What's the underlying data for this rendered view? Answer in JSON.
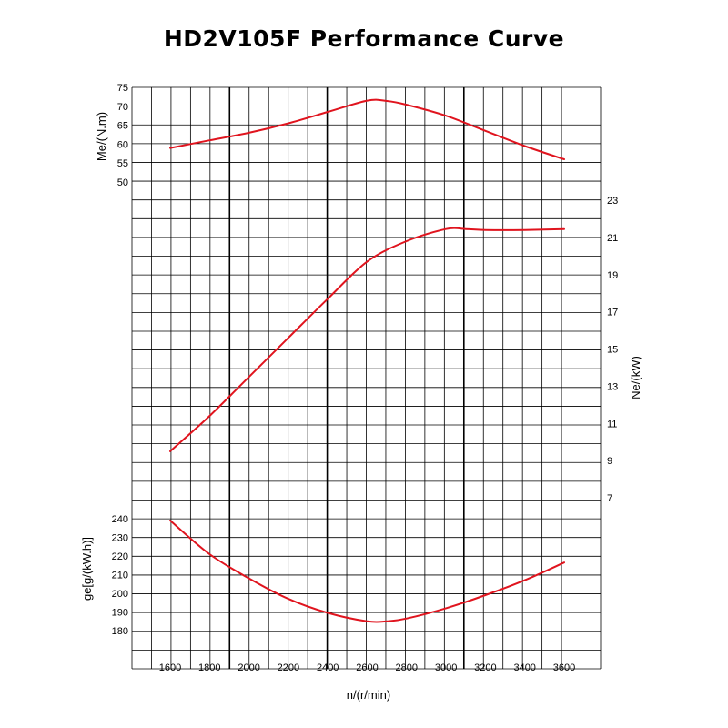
{
  "chart_data": {
    "type": "line",
    "title": "HD2V105F Performance Curve",
    "xlabel": "n/(r/min)",
    "x_ticks": [
      1600,
      1800,
      2000,
      2200,
      2400,
      2600,
      2800,
      3000,
      3200,
      3400,
      3600
    ],
    "xlim": [
      1600,
      3600
    ],
    "grid": true,
    "series": [
      {
        "axis_label": "Me/(N.m)",
        "axis_side": "left",
        "ticks": [
          50,
          55,
          60,
          65,
          70,
          75
        ],
        "x": [
          1600,
          1800,
          2000,
          2200,
          2400,
          2600,
          2700,
          2800,
          3000,
          3200,
          3400,
          3600
        ],
        "values": [
          59,
          61,
          63,
          65.5,
          68.5,
          71.5,
          71.4,
          70.4,
          67.5,
          63.5,
          59.5,
          56
        ],
        "color": "#e0141e"
      },
      {
        "axis_label": "Ne/(kW)",
        "axis_side": "right",
        "ticks": [
          7,
          9,
          11,
          13,
          15,
          17,
          19,
          21,
          23
        ],
        "x": [
          1600,
          1800,
          2000,
          2200,
          2400,
          2600,
          2800,
          3000,
          3100,
          3200,
          3400,
          3600
        ],
        "values": [
          9.5,
          11.4,
          13.5,
          15.6,
          17.7,
          19.7,
          20.8,
          21.45,
          21.45,
          21.4,
          21.4,
          21.45
        ],
        "color": "#e0141e"
      },
      {
        "axis_label": "ge[g/(kW.h)]",
        "axis_side": "left",
        "ticks": [
          180,
          190,
          200,
          210,
          220,
          230,
          240
        ],
        "x": [
          1600,
          1800,
          2000,
          2200,
          2400,
          2600,
          2700,
          2800,
          3000,
          3200,
          3400,
          3600
        ],
        "values": [
          239,
          221,
          208,
          197,
          189.5,
          185,
          185,
          186.5,
          192,
          199,
          207,
          216.5
        ],
        "color": "#e0141e"
      }
    ]
  }
}
